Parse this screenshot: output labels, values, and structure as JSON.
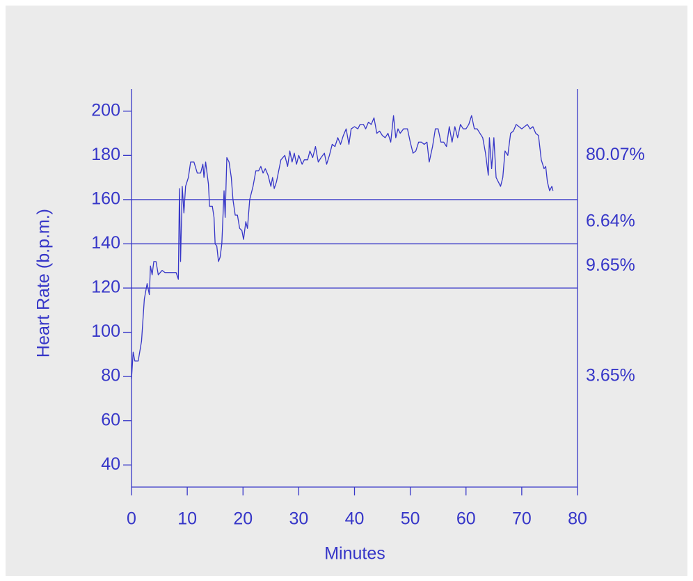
{
  "chart_data": {
    "type": "line",
    "xlabel": "Minutes",
    "ylabel": "Heart Rate (b.p.m.)",
    "color": "#3636c8",
    "xlim": [
      0,
      80
    ],
    "xticks": [
      0,
      10,
      20,
      30,
      40,
      50,
      60,
      70,
      80
    ],
    "ylim": [
      30,
      210
    ],
    "yticks": [
      40,
      60,
      80,
      100,
      120,
      140,
      160,
      180,
      200
    ],
    "zone_lines": [
      120,
      140,
      160
    ],
    "zone_percentages": [
      3.65,
      9.65,
      6.64,
      80.07
    ],
    "zone_percentage_labels": [
      "3.65%",
      "9.65%",
      "6.64%",
      "80.07%"
    ],
    "x": [
      0,
      0.3,
      0.6,
      1.2,
      1.8,
      2.3,
      2.8,
      3.2,
      3.4,
      3.7,
      4.0,
      4.4,
      4.8,
      5.5,
      6,
      7,
      8,
      8.4,
      8.6,
      8.8,
      9.1,
      9.4,
      9.7,
      10.2,
      10.6,
      11.2,
      11.8,
      12.4,
      12.8,
      13,
      13.3,
      13.8,
      14,
      14.5,
      14.8,
      15,
      15.3,
      15.6,
      15.9,
      16.2,
      16.6,
      16.8,
      17.1,
      17.5,
      17.9,
      18.2,
      18.6,
      19,
      19.4,
      19.8,
      20.1,
      20.5,
      20.8,
      21.2,
      21.8,
      22.3,
      22.8,
      23.2,
      23.6,
      24,
      24.5,
      25,
      25.3,
      25.6,
      26,
      26.8,
      27.5,
      28,
      28.4,
      28.8,
      29.2,
      29.6,
      30,
      30.6,
      31,
      31.6,
      32,
      32.5,
      33,
      33.5,
      34,
      34.6,
      35,
      35.5,
      36,
      36.5,
      37,
      37.5,
      38,
      38.5,
      39,
      39.4,
      40,
      40.6,
      41,
      41.6,
      42,
      42.5,
      43,
      43.5,
      44,
      44.5,
      45,
      45.5,
      46,
      46.5,
      47,
      47.4,
      47.8,
      48.2,
      48.8,
      49.5,
      50,
      50.5,
      51,
      51.5,
      52,
      52.5,
      53,
      53.4,
      54,
      54.5,
      55,
      55.5,
      56,
      56.5,
      57,
      57.5,
      58,
      58.5,
      59,
      59.5,
      60,
      60.5,
      61,
      61.5,
      62,
      62.5,
      63,
      63.5,
      64,
      64.2,
      64.6,
      65,
      65.4,
      65.8,
      66.2,
      66.6,
      67,
      67.5,
      68,
      68.5,
      69,
      69.5,
      70,
      70.5,
      71,
      71.5,
      72,
      72.5,
      73,
      73.5,
      74,
      74.3,
      74.6,
      75,
      75.4,
      75.6
    ],
    "values": [
      79,
      91,
      87,
      87,
      96,
      115,
      122,
      117,
      130,
      126,
      132,
      132,
      126,
      128,
      127,
      127,
      127,
      124,
      165,
      132,
      166,
      154,
      166,
      170,
      177,
      177,
      172,
      172,
      176,
      170,
      177,
      167,
      157,
      157,
      152,
      140,
      139,
      132,
      134,
      140,
      164,
      152,
      179,
      177,
      170,
      160,
      153,
      153,
      147,
      146,
      142,
      150,
      147,
      160,
      166,
      173,
      173,
      175,
      172,
      174,
      171,
      166,
      170,
      165,
      168,
      178,
      180,
      175,
      182,
      177,
      181,
      176,
      180,
      176,
      178,
      178,
      182,
      179,
      184,
      177,
      179,
      181,
      176,
      180,
      185,
      184,
      188,
      185,
      189,
      192,
      185,
      192,
      193,
      192,
      194,
      194,
      192,
      195,
      194,
      197,
      190,
      191,
      189,
      188,
      190,
      186,
      198,
      188,
      192,
      190,
      192,
      192,
      186,
      181,
      182,
      186,
      186,
      185,
      186,
      177,
      184,
      192,
      192,
      186,
      186,
      184,
      193,
      186,
      193,
      188,
      194,
      192,
      192,
      194,
      198,
      192,
      192,
      190,
      188,
      181,
      171,
      188,
      174,
      188,
      170,
      168,
      166,
      170,
      182,
      180,
      190,
      191,
      194,
      193,
      192,
      193,
      194,
      192,
      193,
      190,
      189,
      178,
      174,
      175,
      168,
      164,
      166,
      164
    ]
  }
}
